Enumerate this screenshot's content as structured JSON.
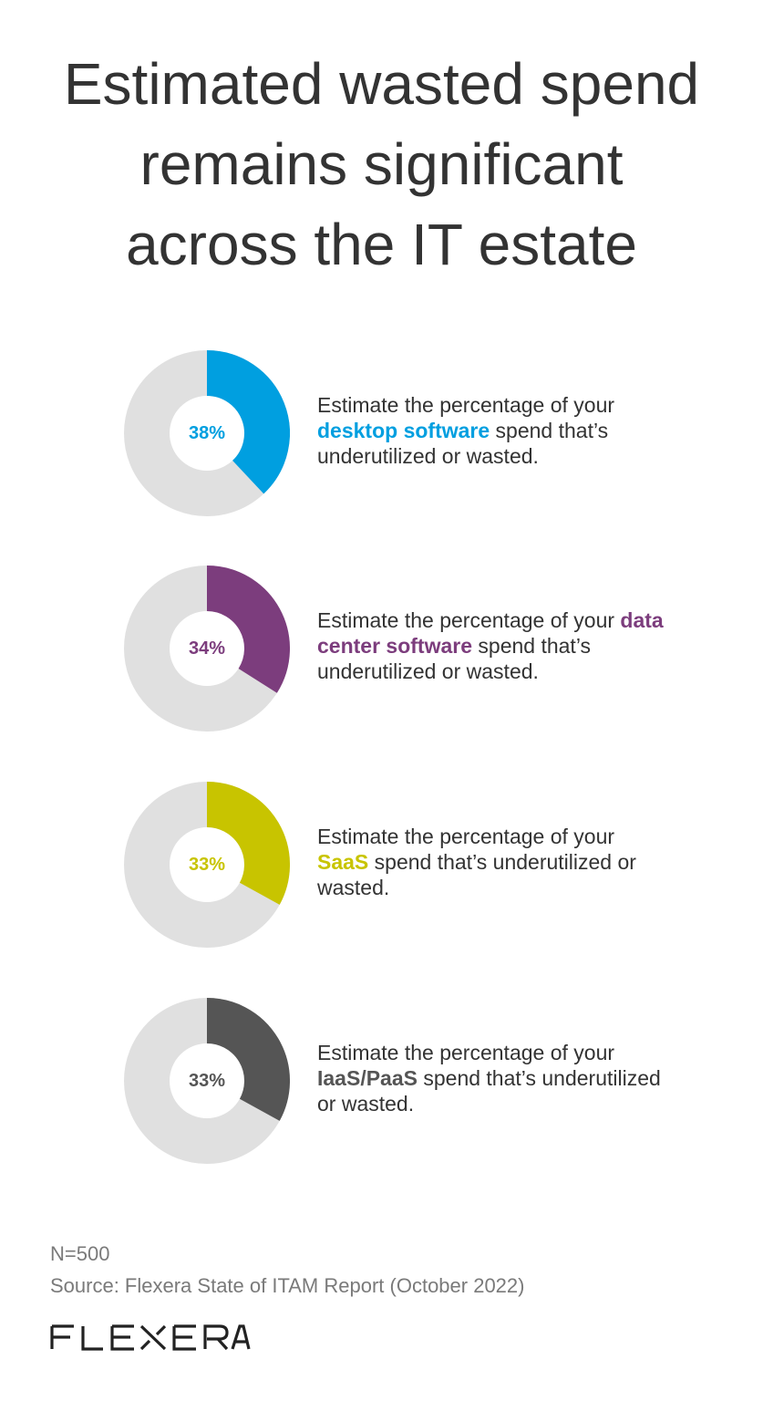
{
  "header": {
    "title_lines": [
      "Estimated wasted spend",
      "remains significant",
      "across the IT estate"
    ]
  },
  "colors": {
    "track": "#e0e0e0",
    "desktop": "#009fe0",
    "datacenter": "#7c3d7d",
    "saas": "#c8c400",
    "iaas": "#555555"
  },
  "chart_data": {
    "type": "pie",
    "items": [
      {
        "key": "desktop",
        "value": 38,
        "label": "38%",
        "color": "#009fe0",
        "question_pre": "Estimate the percentage of your ",
        "highlight": "desktop software",
        "question_post": " spend that’s underutilized or wasted."
      },
      {
        "key": "datacenter",
        "value": 34,
        "label": "34%",
        "color": "#7c3d7d",
        "question_pre": "Estimate the percentage of your ",
        "highlight": "data center software",
        "question_post": " spend that’s underutilized or wasted."
      },
      {
        "key": "saas",
        "value": 33,
        "label": "33%",
        "color": "#c8c400",
        "question_pre": "Estimate the percentage of your ",
        "highlight": "SaaS",
        "question_post": " spend that’s underutilized or wasted."
      },
      {
        "key": "iaas",
        "value": 33,
        "label": "33%",
        "color": "#555555",
        "question_pre": "Estimate the percentage of your ",
        "highlight": "IaaS/PaaS",
        "question_post": " spend that’s underutilized or wasted."
      }
    ]
  },
  "footer": {
    "sample": "N=500",
    "source": "Source: Flexera State of ITAM Report (October 2022)",
    "logo_text": "FLEXERA"
  }
}
